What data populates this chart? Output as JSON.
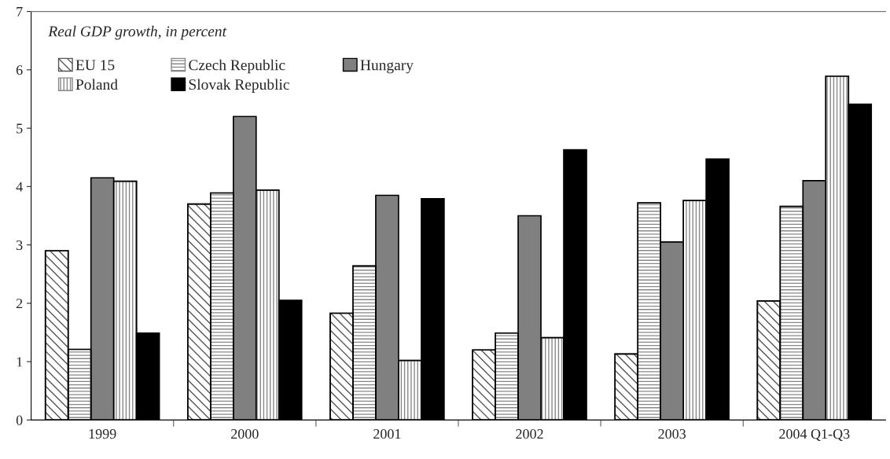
{
  "chart_data": {
    "type": "bar",
    "categories": [
      "1999",
      "2000",
      "2001",
      "2002",
      "2003",
      "2004 Q1-Q3"
    ],
    "series": [
      {
        "name": "EU 15",
        "color": "#555555",
        "values": [
          2.9,
          3.7,
          1.83,
          1.2,
          1.13,
          2.04
        ]
      },
      {
        "name": "Czech Republic",
        "color": "#888888",
        "values": [
          1.21,
          3.89,
          2.64,
          1.49,
          3.72,
          3.66
        ]
      },
      {
        "name": "Hungary",
        "color": "#808080",
        "values": [
          4.15,
          5.2,
          3.85,
          3.5,
          3.05,
          4.1
        ]
      },
      {
        "name": "Poland",
        "color": "#888888",
        "values": [
          4.09,
          3.94,
          1.02,
          1.41,
          3.76,
          5.89
        ]
      },
      {
        "name": "Slovak Republic",
        "color": "#000000",
        "values": [
          1.49,
          2.05,
          3.79,
          4.63,
          4.47,
          5.41
        ]
      }
    ],
    "annotations": [
      "Real GDP growth, in percent"
    ],
    "ylim": [
      0,
      7
    ],
    "yticks": [
      0,
      1,
      2,
      3,
      4,
      5,
      6,
      7
    ],
    "grid": false,
    "legend": "top left"
  }
}
